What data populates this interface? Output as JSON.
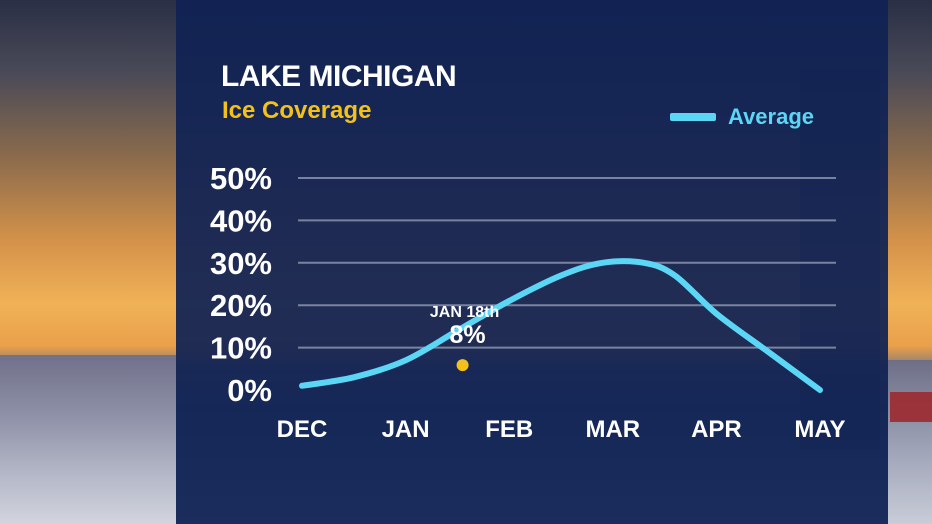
{
  "chart_data": {
    "type": "line",
    "title": "LAKE MICHIGAN",
    "subtitle": "Ice Coverage",
    "categories": [
      "DEC",
      "JAN",
      "FEB",
      "MAR",
      "APR",
      "MAY"
    ],
    "y_tick_labels": [
      "50%",
      "40%",
      "30%",
      "20%",
      "10%",
      "0%"
    ],
    "ylim": [
      0,
      50
    ],
    "grid": true,
    "legend_position": "top-right",
    "series": [
      {
        "name": "Average",
        "color": "#5cd6f5",
        "x": [
          0,
          0.5,
          1,
          1.5,
          2,
          2.5,
          2.9,
          3.3,
          3.6,
          4,
          4.5,
          5
        ],
        "values": [
          1,
          3,
          7,
          14,
          21,
          27,
          30,
          30,
          27,
          18,
          9,
          0
        ]
      }
    ],
    "annotation": {
      "label": "JAN 18th",
      "value_text": "8%",
      "x": 1.55,
      "y": 8,
      "color": "#f4c11b"
    }
  }
}
